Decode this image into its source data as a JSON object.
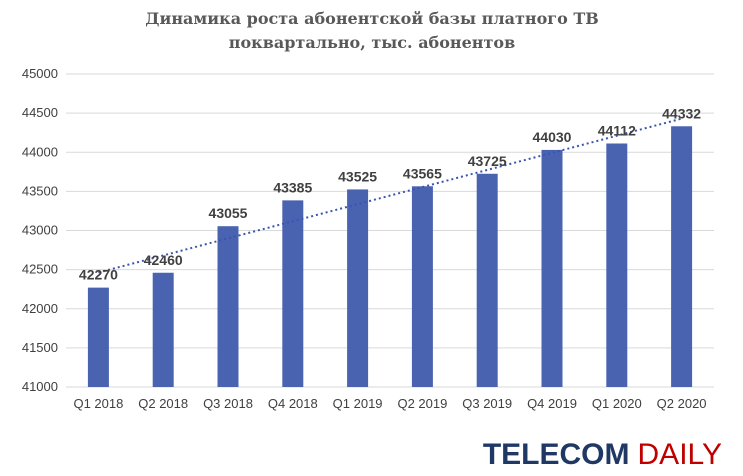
{
  "chart_data": {
    "type": "bar",
    "title": "Динамика роста абонентской базы платного ТВ поквартально, тыс. абонентов",
    "title_lines": [
      "Динамика роста абонентской базы платного ТВ",
      "поквартально, тыс. абонентов"
    ],
    "xlabel": "",
    "ylabel": "",
    "categories": [
      "Q1 2018",
      "Q2 2018",
      "Q3 2018",
      "Q4 2018",
      "Q1 2019",
      "Q2 2019",
      "Q3 2019",
      "Q4 2019",
      "Q1 2020",
      "Q2 2020"
    ],
    "values": [
      42270,
      42460,
      43055,
      43385,
      43525,
      43565,
      43725,
      44030,
      44112,
      44332
    ],
    "ylim": [
      41000,
      45000
    ],
    "yticks": [
      41000,
      41500,
      42000,
      42500,
      43000,
      43500,
      44000,
      44500,
      45000
    ],
    "grid": true,
    "trendline": "linear, dotted",
    "bar_color": "#4a63b0",
    "trend_color": "#3a55b0",
    "grid_color": "#d9d9d9"
  },
  "logo": {
    "part1": "TELECOM",
    "part2": "DAILY",
    "color1": "#1f3864",
    "color2": "#c00000"
  }
}
